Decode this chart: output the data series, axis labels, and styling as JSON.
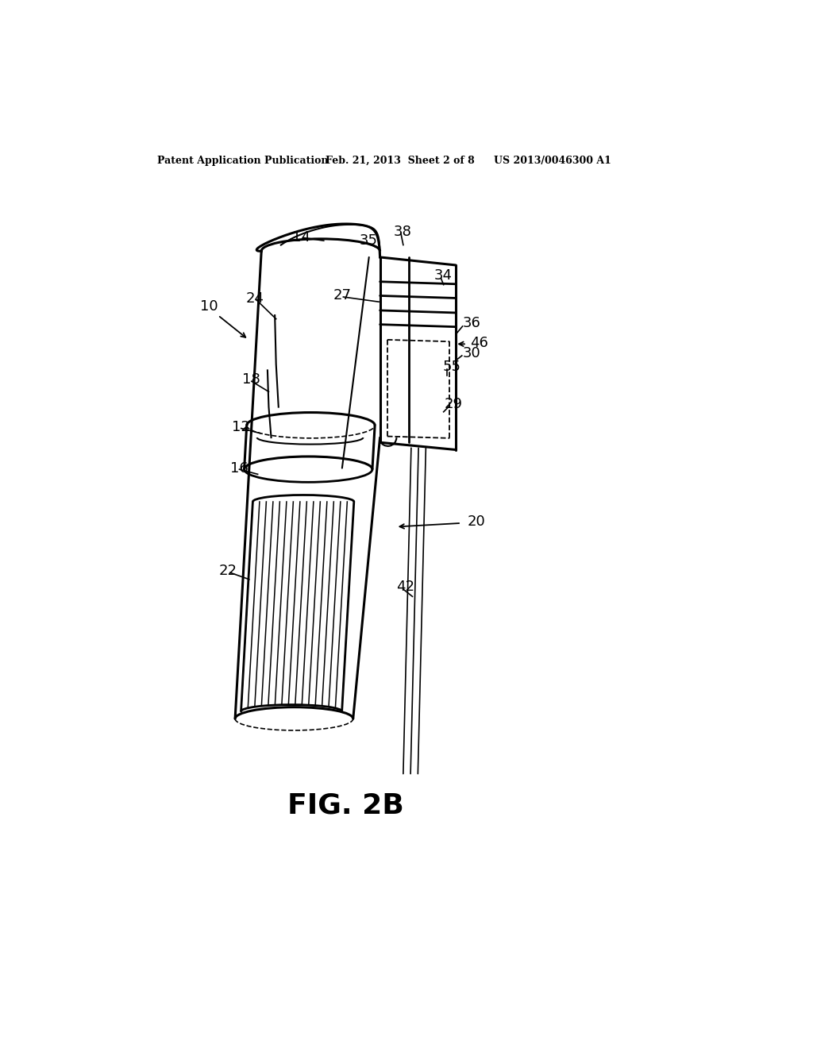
{
  "bg_color": "#ffffff",
  "header_left": "Patent Application Publication",
  "header_mid": "Feb. 21, 2013  Sheet 2 of 8",
  "header_right": "US 2013/0046300 A1",
  "figure_label": "FIG. 2B",
  "line_color": "#000000",
  "lw_main": 2.0,
  "lw_thin": 1.2,
  "lw_dash": 1.3,
  "label_fontsize": 13,
  "header_fontsize": 9,
  "fig_label_fontsize": 26
}
